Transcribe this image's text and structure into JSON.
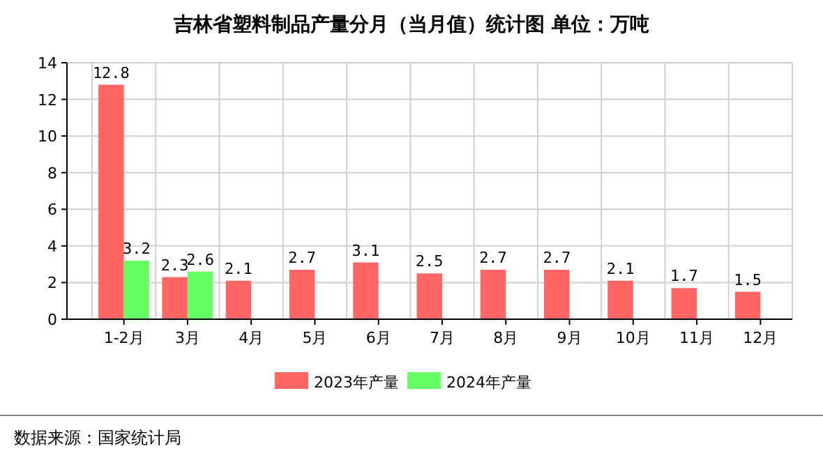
{
  "chart_data": {
    "type": "bar",
    "title": "吉林省塑料制品产量分月（当月值）统计图 单位：万吨",
    "categories": [
      "1-2月",
      "3月",
      "4月",
      "5月",
      "6月",
      "7月",
      "8月",
      "9月",
      "10月",
      "11月",
      "12月"
    ],
    "series": [
      {
        "name": "2023年产量",
        "color": "#ff6666",
        "values": [
          12.8,
          2.3,
          2.1,
          2.7,
          3.1,
          2.5,
          2.7,
          2.7,
          2.1,
          1.7,
          1.5
        ]
      },
      {
        "name": "2024年产量",
        "color": "#66ff66",
        "values": [
          3.2,
          2.6,
          null,
          null,
          null,
          null,
          null,
          null,
          null,
          null,
          null
        ]
      }
    ],
    "ylim": [
      0,
      14
    ],
    "yticks": [
      0,
      2,
      4,
      6,
      8,
      10,
      12,
      14
    ],
    "grid": true,
    "legend": "bottom",
    "data_labels": true,
    "annotations": [
      "数据来源：国家统计局"
    ]
  }
}
